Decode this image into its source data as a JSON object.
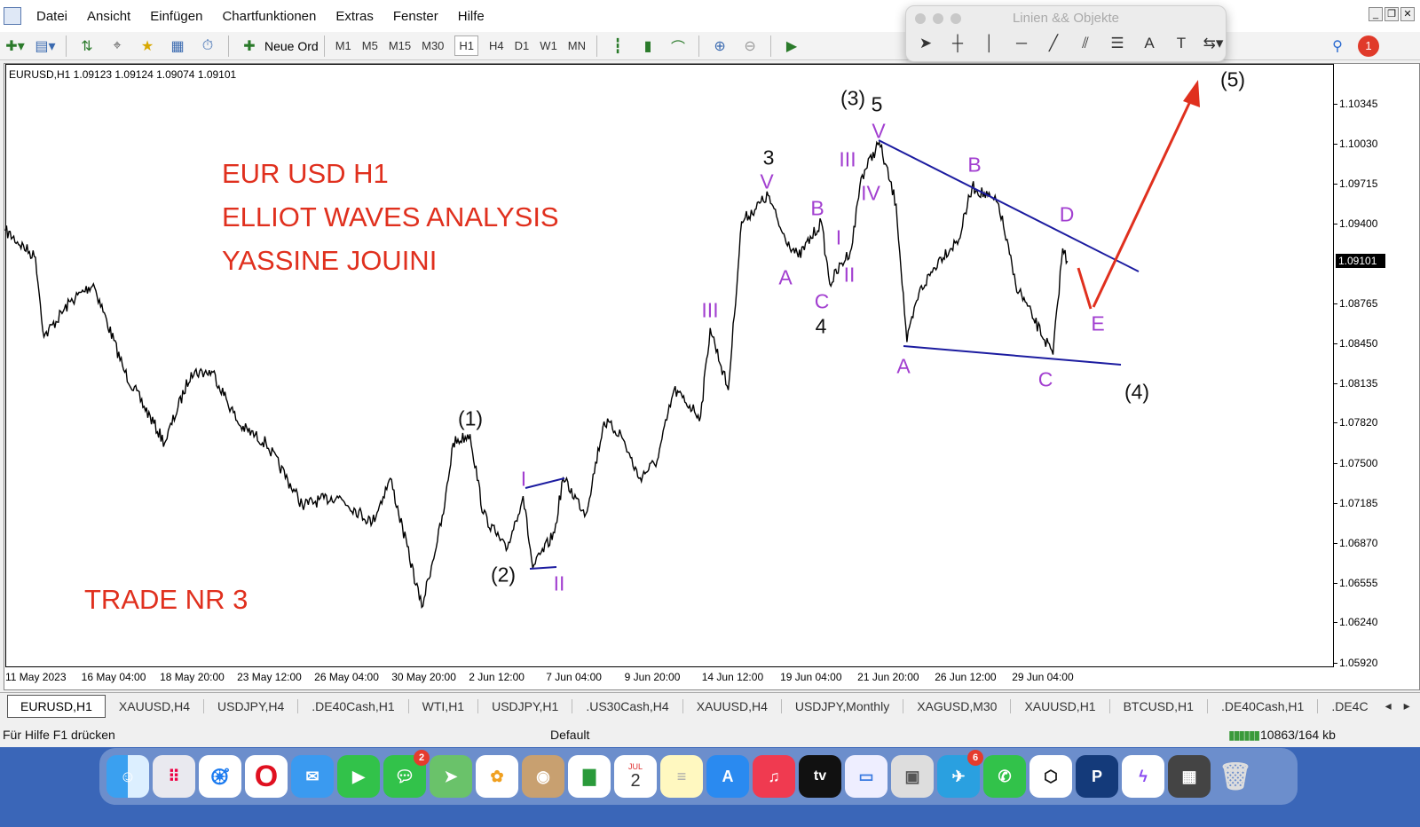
{
  "menu": {
    "items": [
      "Datei",
      "Ansicht",
      "Einfügen",
      "Chartfunktionen",
      "Extras",
      "Fenster",
      "Hilfe"
    ]
  },
  "toolbar": {
    "new_order": "Neue Ord",
    "timeframes": [
      "M1",
      "M5",
      "M15",
      "M30",
      "H1",
      "H4",
      "D1",
      "W1",
      "MN"
    ],
    "active_timeframe": "H1",
    "notification_count": "1"
  },
  "palette": {
    "title": "Linien && Objekte"
  },
  "chart": {
    "header": "EURUSD,H1  1.09123 1.09124 1.09074 1.09101",
    "current_price": "1.09101",
    "titles": [
      "EUR USD H1",
      "ELLIOT WAVES ANALYSIS",
      "YASSINE JOUINI",
      "TRADE NR 3"
    ],
    "wave_labels": {
      "p_III_a": "III",
      "p_I_a": "I",
      "p_II_a": "II",
      "p_V_a": "V",
      "p_A_a": "A",
      "p_B_a": "B",
      "p_C_a": "C",
      "p_I_b": "I",
      "p_II_b": "II",
      "p_III_b": "III",
      "p_IV_b": "IV",
      "p_V_b": "V",
      "p_A_b": "A",
      "p_B_b": "B",
      "p_C_b": "C",
      "p_D": "D",
      "p_E": "E",
      "k_1": "(1)",
      "k_2": "(2)",
      "k_3": "3",
      "k_4": "4",
      "k_3p": "(3)",
      "k_5": "5",
      "k_4p": "(4)",
      "k_5p": "(5)"
    },
    "colors": {
      "wave_purple": "#a23fd0",
      "trendline": "#1c1ca0",
      "projection": "#e0301e",
      "price": "#000000"
    }
  },
  "chart_data": {
    "type": "line",
    "series": [
      {
        "name": "EURUSD,H1",
        "x_unit": "bar",
        "points": [
          [
            0,
            1.0934
          ],
          [
            25,
            1.0913
          ],
          [
            32,
            1.085
          ],
          [
            54,
            1.0878
          ],
          [
            73,
            1.0892
          ],
          [
            99,
            1.0822
          ],
          [
            132,
            1.0766
          ],
          [
            154,
            1.0822
          ],
          [
            172,
            1.0822
          ],
          [
            194,
            1.078
          ],
          [
            216,
            1.0766
          ],
          [
            246,
            1.0717
          ],
          [
            275,
            1.0724
          ],
          [
            304,
            1.0703
          ],
          [
            319,
            1.0738
          ],
          [
            345,
            1.0636
          ],
          [
            363,
            1.071
          ],
          [
            371,
            1.0766
          ],
          [
            385,
            1.0773
          ],
          [
            396,
            1.071
          ],
          [
            415,
            1.0681
          ],
          [
            429,
            1.0724
          ],
          [
            437,
            1.0667
          ],
          [
            455,
            1.0695
          ],
          [
            462,
            1.0738
          ],
          [
            481,
            1.071
          ],
          [
            496,
            1.0783
          ],
          [
            510,
            1.0773
          ],
          [
            525,
            1.0738
          ],
          [
            540,
            1.0752
          ],
          [
            554,
            1.0808
          ],
          [
            576,
            1.0787
          ],
          [
            584,
            1.0857
          ],
          [
            599,
            1.0808
          ],
          [
            610,
            1.0941
          ],
          [
            632,
            1.0962
          ],
          [
            643,
            1.0934
          ],
          [
            657,
            1.0913
          ],
          [
            676,
            1.0941
          ],
          [
            683,
            1.0892
          ],
          [
            701,
            1.092
          ],
          [
            709,
            1.0976
          ],
          [
            724,
            1.1004
          ],
          [
            738,
            1.0955
          ],
          [
            747,
            1.0846
          ],
          [
            757,
            1.0885
          ],
          [
            775,
            1.0913
          ],
          [
            790,
            1.0927
          ],
          [
            801,
            1.0969
          ],
          [
            823,
            1.0955
          ],
          [
            837,
            1.0892
          ],
          [
            852,
            1.0864
          ],
          [
            868,
            1.0836
          ],
          [
            876,
            1.092
          ],
          [
            880,
            1.091
          ]
        ]
      }
    ],
    "y_ticks": [
      "1.10345",
      "1.10030",
      "1.09715",
      "1.09400",
      "1.08765",
      "1.08450",
      "1.08135",
      "1.07820",
      "1.07500",
      "1.07185",
      "1.06870",
      "1.06555",
      "1.06240",
      "1.05920"
    ],
    "ylim": [
      1.0592,
      1.10345
    ],
    "x_ticks": [
      {
        "bar": 0,
        "label": "11 May 2023"
      },
      {
        "bar": 63,
        "label": "16 May 04:00"
      },
      {
        "bar": 128,
        "label": "18 May 20:00"
      },
      {
        "bar": 192,
        "label": "23 May 12:00"
      },
      {
        "bar": 256,
        "label": "26 May 04:00"
      },
      {
        "bar": 320,
        "label": "30 May 20:00"
      },
      {
        "bar": 384,
        "label": "2 Jun 12:00"
      },
      {
        "bar": 448,
        "label": "7 Jun 04:00"
      },
      {
        "bar": 513,
        "label": "9 Jun 20:00"
      },
      {
        "bar": 577,
        "label": "14 Jun 12:00"
      },
      {
        "bar": 642,
        "label": "19 Jun 04:00"
      },
      {
        "bar": 706,
        "label": "21 Jun 20:00"
      },
      {
        "bar": 770,
        "label": "26 Jun 12:00"
      },
      {
        "bar": 834,
        "label": "29 Jun 04:00"
      }
    ],
    "grid": false
  },
  "tabs": [
    "EURUSD,H1",
    "XAUUSD,H4",
    "USDJPY,H4",
    ".DE40Cash,H1",
    "WTI,H1",
    "USDJPY,H1",
    ".US30Cash,H4",
    "XAUUSD,H4",
    "USDJPY,Monthly",
    "XAGUSD,M30",
    "XAUUSD,H1",
    "BTCUSD,H1",
    ".DE40Cash,H1",
    ".DE4C"
  ],
  "status": {
    "help": "Für Hilfe F1 drücken",
    "profile": "Default",
    "traffic": "10863/164 kb"
  },
  "dock": {
    "calendar_month": "JUL",
    "calendar_day": "2",
    "messages_badge": "2",
    "telegram_badge": "6",
    "tv_label": "tv"
  }
}
